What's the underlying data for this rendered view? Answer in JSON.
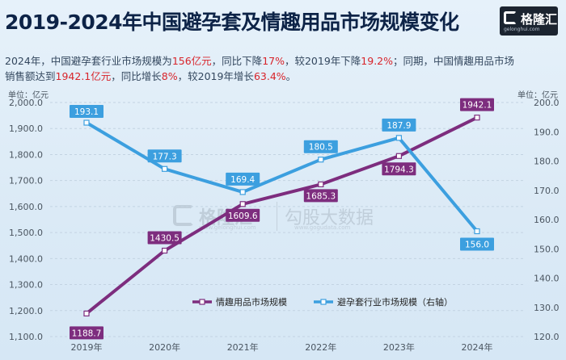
{
  "title": "2019-2024年中国避孕套及情趣用品市场规模变化",
  "logo": {
    "text": "格隆汇",
    "sub": "gelonghui.com"
  },
  "summary": {
    "p1": "2024年，中国避孕套行业市场规模为",
    "v1": "156亿元",
    "p2": "，同比下降",
    "v2": "17%",
    "p3": "，较2019年下降",
    "v3": "19.2%",
    "p4": "；同期，中国情趣用品市场销售额达到",
    "v4": "1942.1亿元",
    "p5": "，同比增长",
    "v5": "8%",
    "p6": "，较2019年增长",
    "v6": "63.4%",
    "p7": "。"
  },
  "watermark": {
    "brand": "格隆汇",
    "brand_sub": "www.gelonghui.com",
    "data": "勾股大数据",
    "data_sub": "www.gogudata.com"
  },
  "colors": {
    "purple": "#7d2d7e",
    "blue": "#3c9fdf",
    "highlight": "#d8242b"
  },
  "chart_data": {
    "type": "line",
    "categories": [
      "2019年",
      "2020年",
      "2021年",
      "2022年",
      "2023年",
      "2024年"
    ],
    "series": [
      {
        "name": "情趣用品市场规模",
        "axis": "left",
        "values": [
          1188.7,
          1430.5,
          1609.6,
          1685.3,
          1794.3,
          1942.1
        ],
        "labels": [
          "1188.7",
          "1430.5",
          "1609.6",
          "1685.3",
          "1794.3",
          "1942.1"
        ]
      },
      {
        "name": "避孕套行业市场规模（右轴）",
        "axis": "right",
        "values": [
          193.1,
          177.3,
          169.4,
          180.5,
          187.9,
          156.0
        ],
        "labels": [
          "193.1",
          "177.3",
          "169.4",
          "180.5",
          "187.9",
          "156.0"
        ]
      }
    ],
    "left_axis": {
      "unit": "单位：亿元",
      "ylim": [
        1100,
        2000
      ],
      "ticks": [
        "1,100.0",
        "1,200.0",
        "1,300.0",
        "1,400.0",
        "1,500.0",
        "1,600.0",
        "1,700.0",
        "1,800.0",
        "1,900.0",
        "2,000.0"
      ]
    },
    "right_axis": {
      "unit": "单位：亿元",
      "ylim": [
        120,
        200
      ],
      "ticks": [
        "120.0",
        "130.0",
        "140.0",
        "150.0",
        "160.0",
        "170.0",
        "180.0",
        "190.0",
        "200.0"
      ]
    },
    "grid": true,
    "legend": "bottom-right"
  }
}
